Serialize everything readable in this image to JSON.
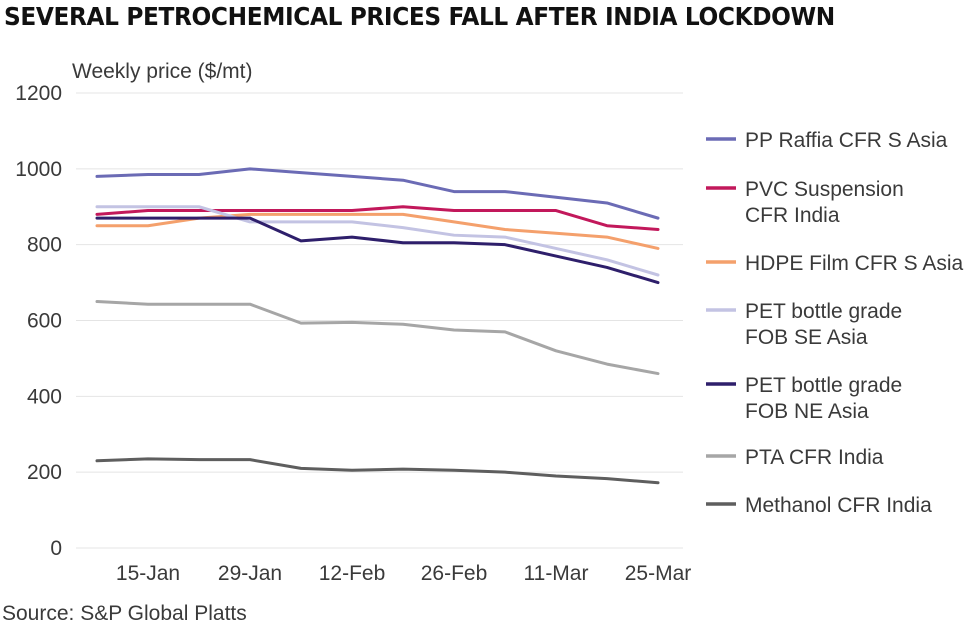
{
  "title": "SEVERAL PETROCHEMICAL PRICES FALL AFTER INDIA LOCKDOWN",
  "source": "Source: S&P Global Platts",
  "chart_data": {
    "type": "line",
    "title": "SEVERAL PETROCHEMICAL PRICES FALL AFTER INDIA LOCKDOWN",
    "ylabel": "Weekly price ($/mt)",
    "xlabel": "",
    "ylim": [
      0,
      1200
    ],
    "yticks": [
      0,
      200,
      400,
      600,
      800,
      1000,
      1200
    ],
    "x": [
      "8-Jan",
      "15-Jan",
      "22-Jan",
      "29-Jan",
      "5-Feb",
      "12-Feb",
      "19-Feb",
      "26-Feb",
      "4-Mar",
      "11-Mar",
      "18-Mar",
      "25-Mar"
    ],
    "xtick_labels": [
      "15-Jan",
      "29-Jan",
      "12-Feb",
      "26-Feb",
      "11-Mar",
      "25-Mar"
    ],
    "grid": true,
    "legend_position": "right",
    "series": [
      {
        "name": "PP Raffia CFR S Asia",
        "legend_lines": [
          "PP Raffia CFR S Asia"
        ],
        "color": "#6b6bb5",
        "values": [
          980,
          985,
          985,
          1000,
          990,
          980,
          970,
          940,
          940,
          925,
          910,
          870
        ]
      },
      {
        "name": "PVC Suspension CFR India",
        "legend_lines": [
          "PVC Suspension",
          "CFR India"
        ],
        "color": "#c2185b",
        "values": [
          880,
          890,
          890,
          890,
          890,
          890,
          900,
          890,
          890,
          890,
          850,
          840
        ]
      },
      {
        "name": "HDPE Film CFR S Asia",
        "legend_lines": [
          "HDPE Film CFR S Asia"
        ],
        "color": "#f4a06c",
        "values": [
          850,
          850,
          870,
          880,
          880,
          880,
          880,
          860,
          840,
          830,
          820,
          790
        ]
      },
      {
        "name": "PET bottle grade FOB SE Asia",
        "legend_lines": [
          "PET bottle grade",
          "FOB SE Asia"
        ],
        "color": "#c3c3e3",
        "values": [
          900,
          900,
          900,
          860,
          860,
          860,
          845,
          825,
          820,
          790,
          760,
          720
        ]
      },
      {
        "name": "PET bottle grade FOB NE Asia",
        "legend_lines": [
          "PET bottle grade",
          "FOB NE Asia"
        ],
        "color": "#2e1f6b",
        "values": [
          870,
          870,
          870,
          870,
          810,
          820,
          805,
          805,
          800,
          770,
          740,
          700
        ]
      },
      {
        "name": "PTA CFR India",
        "legend_lines": [
          "PTA CFR India"
        ],
        "color": "#a6a6a6",
        "values": [
          650,
          643,
          643,
          643,
          593,
          595,
          590,
          575,
          570,
          520,
          485,
          460
        ]
      },
      {
        "name": "Methanol CFR India",
        "legend_lines": [
          "Methanol CFR India"
        ],
        "color": "#5e5e5e",
        "values": [
          230,
          235,
          233,
          233,
          210,
          205,
          208,
          205,
          200,
          190,
          183,
          172
        ]
      }
    ]
  }
}
